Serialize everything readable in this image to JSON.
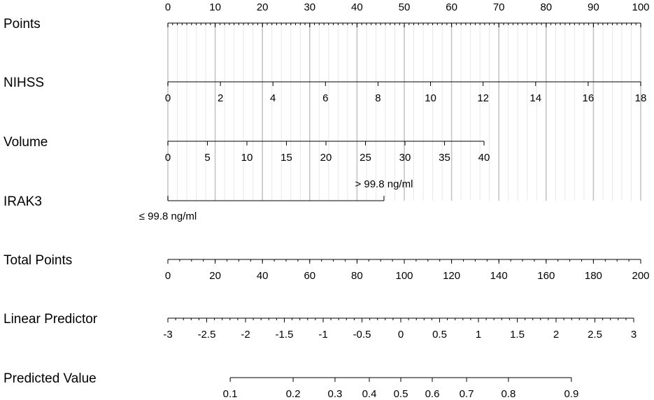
{
  "chart_data": {
    "type": "nomogram",
    "grid": true,
    "minor_grid_step": 2,
    "axes": [
      {
        "name": "Points",
        "lim": [
          0,
          100
        ],
        "ticks": [
          0,
          10,
          20,
          30,
          40,
          50,
          60,
          70,
          80,
          90,
          100
        ],
        "minor_step": 1
      },
      {
        "name": "NIHSS",
        "lim": [
          0,
          18
        ],
        "ticks": [
          0,
          2,
          4,
          6,
          8,
          10,
          12,
          14,
          16,
          18
        ]
      },
      {
        "name": "Volume",
        "lim": [
          0,
          40
        ],
        "ticks": [
          0,
          5,
          10,
          15,
          20,
          25,
          30,
          35,
          40
        ]
      },
      {
        "name": "IRAK3",
        "categories": [
          "≤ 99.8 ng/ml",
          "> 99.8 ng/ml"
        ],
        "points": [
          0,
          45.7
        ]
      },
      {
        "name": "Total Points",
        "lim": [
          0,
          200
        ],
        "ticks": [
          0,
          20,
          40,
          60,
          80,
          100,
          120,
          140,
          160,
          180,
          200
        ],
        "minor_step": 5
      },
      {
        "name": "Linear Predictor",
        "lim": [
          -3,
          3
        ],
        "ticks": [
          -3,
          -2.5,
          -2,
          -1.5,
          -1,
          -0.5,
          0,
          0.5,
          1,
          1.5,
          2,
          2.5,
          3
        ],
        "minor_step": 0.1
      },
      {
        "name": "Predicted Value",
        "scale": "logit",
        "lim": [
          0.1,
          0.9
        ],
        "ticks": [
          0.1,
          0.2,
          0.3,
          0.4,
          0.5,
          0.6,
          0.7,
          0.8,
          0.9
        ]
      }
    ]
  }
}
